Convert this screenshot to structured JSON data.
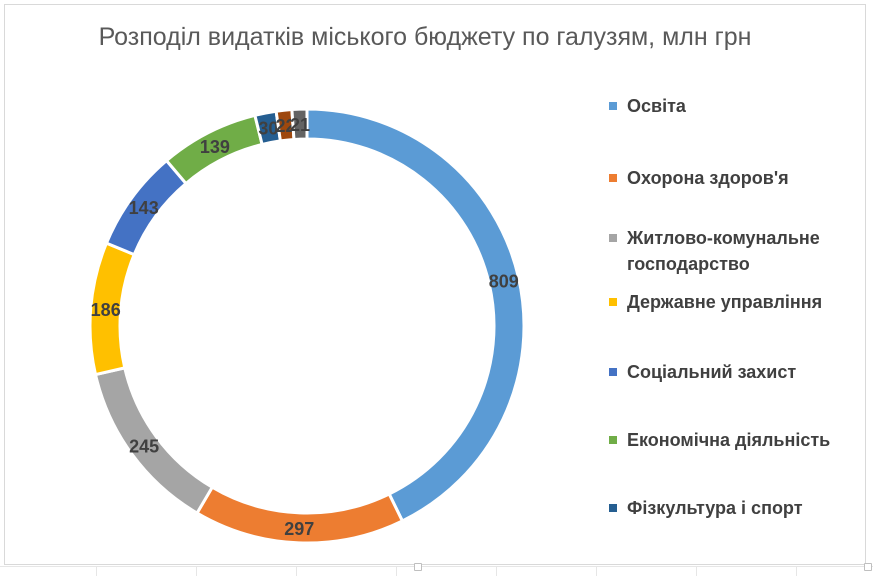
{
  "chart_data": {
    "type": "donut",
    "title": "Розподіл видатків міського бюджету по галузям, млн грн",
    "categories": [
      "Освіта",
      "Охорона здоров'я",
      "Житлово-комунальне господарство",
      "Державне управління",
      "Соціальний захист",
      "Економічна діяльність",
      "Фізкультура і спорт",
      "",
      ""
    ],
    "values": [
      809,
      297,
      245,
      186,
      143,
      139,
      30,
      22,
      21
    ],
    "data_labels": [
      "809",
      "297",
      "245",
      "186",
      "143",
      "139",
      "30",
      "22",
      "21"
    ],
    "colors": [
      "#5b9bd5",
      "#ed7d31",
      "#a5a5a5",
      "#ffc000",
      "#4472c4",
      "#70ad47",
      "#255e91",
      "#9e480e",
      "#636363"
    ],
    "legend_position": "right",
    "start_angle_deg": 0,
    "direction": "clockwise"
  },
  "legend": {
    "items": [
      {
        "label": "Освіта",
        "color": "#5b9bd5"
      },
      {
        "label": "Охорона здоров'я",
        "color": "#ed7d31"
      },
      {
        "label": "Житлово-комунальне господарство",
        "color": "#a5a5a5"
      },
      {
        "label": "Державне управління",
        "color": "#ffc000"
      },
      {
        "label": "Соціальний захист",
        "color": "#4472c4"
      },
      {
        "label": "Економічна діяльність",
        "color": "#70ad47"
      },
      {
        "label": "Фізкультура і спорт",
        "color": "#255e91"
      }
    ]
  }
}
